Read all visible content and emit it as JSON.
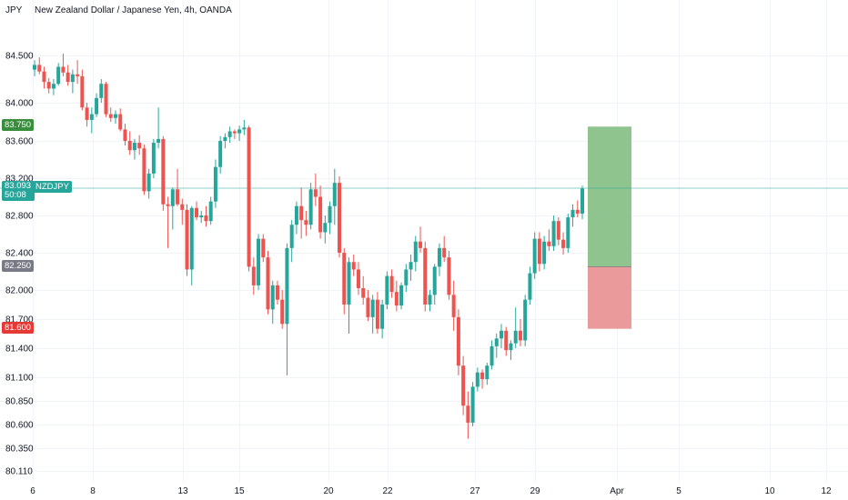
{
  "header": {
    "currency": "JPY",
    "title": "New Zealand Dollar / Japanese Yen, 4h, OANDA"
  },
  "price_tags": {
    "take_profit": "83.750",
    "current_price": "83.093",
    "countdown": "50:08",
    "symbol": "NZDJPY",
    "entry": "82.250",
    "stop_loss": "81.600"
  },
  "colors": {
    "up": "#26a69a",
    "down": "#ef5350",
    "profit_zone": "#8fc48f",
    "loss_zone": "#ea9a9a",
    "take_profit_tag": "#388e3c",
    "entry_tag": "#787b86",
    "stop_tag": "#e53935"
  },
  "chart_data": {
    "type": "candlestick",
    "symbol": "NZDJPY",
    "timeframe": "4h",
    "y_ticks": [
      "84.500",
      "84.000",
      "83.600",
      "83.200",
      "82.800",
      "82.400",
      "82.000",
      "81.700",
      "81.400",
      "81.100",
      "80.850",
      "80.600",
      "80.350",
      "80.110"
    ],
    "x_ticks": [
      "6",
      "8",
      "13",
      "15",
      "20",
      "22",
      "27",
      "29",
      "Apr",
      "5",
      "10",
      "12"
    ],
    "candles": [
      [
        84.35,
        84.45,
        84.28,
        84.4
      ],
      [
        84.4,
        84.48,
        84.3,
        84.33
      ],
      [
        84.33,
        84.38,
        84.15,
        84.22
      ],
      [
        84.22,
        84.26,
        84.1,
        84.15
      ],
      [
        84.15,
        84.25,
        84.08,
        84.2
      ],
      [
        84.2,
        84.42,
        84.18,
        84.38
      ],
      [
        84.38,
        84.52,
        84.28,
        84.32
      ],
      [
        84.32,
        84.4,
        84.18,
        84.22
      ],
      [
        84.22,
        84.35,
        84.1,
        84.3
      ],
      [
        84.3,
        84.45,
        84.2,
        84.28
      ],
      [
        84.28,
        84.35,
        83.92,
        83.95
      ],
      [
        83.95,
        84.0,
        83.75,
        83.82
      ],
      [
        83.82,
        83.95,
        83.68,
        83.88
      ],
      [
        83.88,
        84.1,
        83.85,
        84.05
      ],
      [
        84.05,
        84.25,
        84.0,
        84.2
      ],
      [
        84.2,
        84.22,
        83.85,
        83.88
      ],
      [
        83.88,
        83.95,
        83.8,
        83.84
      ],
      [
        83.84,
        83.92,
        83.78,
        83.88
      ],
      [
        83.88,
        83.94,
        83.7,
        83.72
      ],
      [
        83.72,
        83.78,
        83.55,
        83.6
      ],
      [
        83.6,
        83.7,
        83.45,
        83.5
      ],
      [
        83.5,
        83.62,
        83.4,
        83.58
      ],
      [
        83.58,
        83.66,
        83.45,
        83.52
      ],
      [
        83.52,
        83.56,
        83.02,
        83.06
      ],
      [
        83.06,
        83.3,
        82.98,
        83.25
      ],
      [
        83.25,
        83.62,
        83.2,
        83.58
      ],
      [
        83.58,
        83.95,
        83.52,
        83.62
      ],
      [
        83.62,
        83.65,
        82.85,
        82.92
      ],
      [
        82.92,
        83.0,
        82.45,
        82.9
      ],
      [
        82.9,
        83.1,
        82.65,
        83.08
      ],
      [
        83.08,
        83.3,
        82.9,
        82.92
      ],
      [
        82.92,
        82.98,
        82.7,
        82.86
      ],
      [
        82.86,
        82.92,
        82.15,
        82.22
      ],
      [
        82.22,
        82.9,
        82.05,
        82.88
      ],
      [
        82.88,
        82.95,
        82.75,
        82.78
      ],
      [
        82.78,
        82.85,
        82.72,
        82.8
      ],
      [
        82.8,
        82.9,
        82.68,
        82.74
      ],
      [
        82.74,
        83.0,
        82.7,
        82.95
      ],
      [
        82.95,
        83.4,
        82.88,
        83.32
      ],
      [
        83.32,
        83.65,
        83.25,
        83.6
      ],
      [
        83.6,
        83.68,
        83.52,
        83.64
      ],
      [
        83.64,
        83.75,
        83.58,
        83.7
      ],
      [
        83.7,
        83.72,
        83.62,
        83.68
      ],
      [
        83.68,
        83.76,
        83.6,
        83.72
      ],
      [
        83.72,
        83.82,
        83.66,
        83.74
      ],
      [
        83.74,
        83.76,
        82.2,
        82.25
      ],
      [
        82.25,
        82.35,
        81.95,
        82.05
      ],
      [
        82.05,
        82.6,
        82.0,
        82.55
      ],
      [
        82.55,
        82.6,
        82.3,
        82.35
      ],
      [
        82.35,
        82.42,
        81.75,
        81.8
      ],
      [
        81.8,
        82.1,
        81.65,
        82.05
      ],
      [
        82.05,
        82.1,
        81.85,
        81.9
      ],
      [
        81.9,
        82.0,
        81.6,
        81.65
      ],
      [
        81.65,
        82.5,
        81.12,
        82.45
      ],
      [
        82.45,
        82.75,
        82.3,
        82.7
      ],
      [
        82.7,
        82.95,
        82.6,
        82.9
      ],
      [
        82.9,
        83.1,
        82.55,
        82.75
      ],
      [
        82.75,
        82.85,
        82.58,
        82.7
      ],
      [
        82.7,
        83.15,
        82.65,
        83.08
      ],
      [
        83.08,
        83.25,
        82.9,
        83.0
      ],
      [
        83.0,
        83.12,
        82.55,
        82.62
      ],
      [
        82.62,
        82.8,
        82.5,
        82.72
      ],
      [
        82.72,
        82.95,
        82.6,
        82.9
      ],
      [
        82.9,
        83.3,
        82.7,
        83.15
      ],
      [
        83.15,
        83.22,
        82.35,
        82.4
      ],
      [
        82.4,
        82.45,
        81.75,
        81.85
      ],
      [
        81.85,
        82.35,
        81.55,
        82.3
      ],
      [
        82.3,
        82.38,
        82.15,
        82.22
      ],
      [
        82.22,
        82.3,
        81.95,
        82.02
      ],
      [
        82.02,
        82.15,
        81.85,
        81.92
      ],
      [
        81.92,
        82.0,
        81.68,
        81.72
      ],
      [
        81.72,
        81.95,
        81.55,
        81.9
      ],
      [
        81.9,
        81.98,
        81.55,
        81.6
      ],
      [
        81.6,
        81.9,
        81.5,
        81.85
      ],
      [
        81.85,
        82.2,
        81.8,
        82.15
      ],
      [
        82.15,
        82.22,
        81.92,
        81.98
      ],
      [
        81.98,
        82.1,
        81.78,
        81.84
      ],
      [
        81.84,
        82.08,
        81.8,
        82.05
      ],
      [
        82.05,
        82.28,
        81.98,
        82.22
      ],
      [
        82.22,
        82.38,
        82.1,
        82.3
      ],
      [
        82.3,
        82.58,
        82.2,
        82.52
      ],
      [
        82.52,
        82.68,
        82.4,
        82.45
      ],
      [
        82.45,
        82.52,
        81.78,
        81.85
      ],
      [
        81.85,
        82.0,
        81.78,
        81.95
      ],
      [
        81.95,
        82.28,
        81.85,
        82.25
      ],
      [
        82.25,
        82.5,
        82.15,
        82.45
      ],
      [
        82.45,
        82.58,
        82.3,
        82.35
      ],
      [
        82.35,
        82.42,
        81.9,
        81.95
      ],
      [
        81.95,
        82.1,
        81.58,
        81.72
      ],
      [
        81.72,
        81.8,
        81.12,
        81.22
      ],
      [
        81.22,
        81.32,
        80.7,
        80.8
      ],
      [
        80.8,
        80.95,
        80.45,
        80.62
      ],
      [
        80.62,
        81.05,
        80.58,
        81.0
      ],
      [
        81.0,
        81.2,
        80.95,
        81.15
      ],
      [
        81.15,
        81.18,
        80.98,
        81.08
      ],
      [
        81.08,
        81.25,
        81.02,
        81.22
      ],
      [
        81.22,
        81.48,
        81.18,
        81.42
      ],
      [
        81.42,
        81.55,
        81.3,
        81.5
      ],
      [
        81.5,
        81.65,
        81.4,
        81.58
      ],
      [
        81.58,
        81.62,
        81.32,
        81.38
      ],
      [
        81.38,
        81.48,
        81.28,
        81.45
      ],
      [
        81.45,
        81.82,
        81.4,
        81.58
      ],
      [
        81.58,
        81.7,
        81.42,
        81.48
      ],
      [
        81.48,
        81.95,
        81.42,
        81.9
      ],
      [
        81.9,
        82.25,
        81.85,
        82.18
      ],
      [
        82.18,
        82.62,
        82.12,
        82.55
      ],
      [
        82.55,
        82.62,
        82.2,
        82.28
      ],
      [
        82.28,
        82.58,
        82.22,
        82.52
      ],
      [
        82.52,
        82.65,
        82.42,
        82.47
      ],
      [
        82.47,
        82.8,
        82.42,
        82.74
      ],
      [
        82.74,
        82.78,
        82.48,
        82.54
      ],
      [
        82.54,
        82.62,
        82.38,
        82.45
      ],
      [
        82.45,
        82.82,
        82.4,
        82.78
      ],
      [
        82.78,
        82.92,
        82.68,
        82.86
      ],
      [
        82.86,
        82.96,
        82.78,
        82.82
      ],
      [
        82.82,
        83.12,
        82.76,
        83.09
      ]
    ]
  }
}
